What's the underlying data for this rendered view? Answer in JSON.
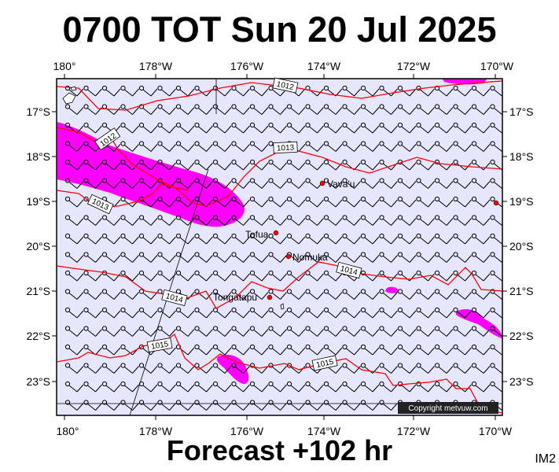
{
  "header": {
    "title": "0700 TOT Sun 20 Jul 2025"
  },
  "footer": {
    "forecast_label": "Forecast +102 hr",
    "corner_code": "IM2"
  },
  "map": {
    "lon_range": [
      -180.5,
      -169.5
    ],
    "lat_range": [
      -23.5,
      -16.3
    ],
    "lon_ticks": [
      {
        "value": -180,
        "label": "180°"
      },
      {
        "value": -178,
        "label": "178°W"
      },
      {
        "value": -176,
        "label": "176°W"
      },
      {
        "value": -174,
        "label": "174°W"
      },
      {
        "value": -172,
        "label": "172°W"
      },
      {
        "value": -170,
        "label": "170°W"
      }
    ],
    "lat_ticks": [
      {
        "value": -17,
        "label": "17°S"
      },
      {
        "value": -18,
        "label": "18°S"
      },
      {
        "value": -19,
        "label": "19°S"
      },
      {
        "value": -20,
        "label": "20°S"
      },
      {
        "value": -21,
        "label": "21°S"
      },
      {
        "value": -22,
        "label": "22°S"
      },
      {
        "value": -23,
        "label": "23°S"
      }
    ],
    "isobar_labels": [
      "1012",
      "1013",
      "1013",
      "1014",
      "1014",
      "1015",
      "1015"
    ],
    "places": [
      {
        "name": "Vava'u",
        "lon": -173.9,
        "lat": -18.65
      },
      {
        "name": "Tofua",
        "lon": -175.05,
        "lat": -19.75
      },
      {
        "name": "Nomuka",
        "lon": -174.8,
        "lat": -20.25
      },
      {
        "name": "Tongatapu",
        "lon": -175.1,
        "lat": -21.15
      }
    ],
    "colors": {
      "ocean": "#e6e6ff",
      "rain": "#ff00ff",
      "isobar": "#ff0000",
      "land": "#ffffff",
      "place_dot": "#ff0000"
    },
    "copyright": "Copyright metvuw.com"
  }
}
